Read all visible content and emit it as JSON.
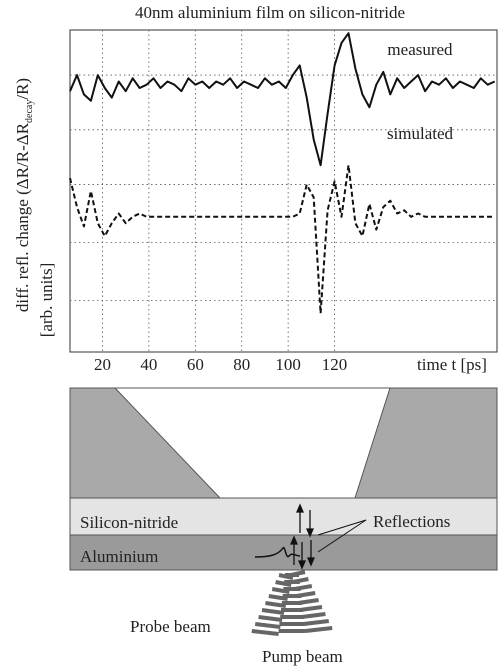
{
  "chart_data": {
    "type": "line",
    "title": "40nm aluminium film on silicon-nitride",
    "y_label": [
      "diff. refl. change (ΔR/R-ΔR",
      "decay",
      "/R)"
    ],
    "y_label_units": "[arb. units]",
    "x_label": "time  t [ps]",
    "x": [
      6,
      9,
      12,
      15,
      18,
      21,
      24,
      27,
      30,
      33,
      36,
      39,
      42,
      45,
      48,
      51,
      54,
      57,
      60,
      63,
      66,
      69,
      72,
      75,
      78,
      81,
      84,
      87,
      90,
      93,
      96,
      99,
      102,
      105,
      108,
      111,
      114,
      117,
      120,
      123,
      126,
      129,
      132,
      135,
      138,
      141,
      144,
      147,
      150,
      153,
      156,
      159,
      162,
      165,
      168,
      171,
      174,
      177,
      180,
      183,
      186,
      189
    ],
    "series": [
      {
        "name": "measured",
        "color": "#111111",
        "dash": false,
        "values": [
          8.1,
          8.6,
          8.0,
          7.8,
          8.6,
          8.2,
          7.9,
          8.4,
          8.1,
          8.5,
          8.2,
          8.3,
          8.5,
          8.2,
          8.4,
          8.3,
          8.1,
          8.5,
          8.3,
          8.4,
          8.2,
          8.4,
          8.3,
          8.5,
          8.2,
          8.4,
          8.3,
          8.2,
          8.5,
          8.3,
          8.4,
          8.2,
          8.6,
          8.9,
          7.9,
          6.6,
          5.8,
          7.4,
          8.9,
          9.6,
          9.9,
          8.8,
          8.0,
          7.6,
          8.3,
          8.7,
          8.0,
          8.5,
          8.2,
          8.4,
          8.6,
          8.1,
          8.4,
          8.3,
          8.5,
          8.2,
          8.4,
          8.3,
          8.2,
          8.5,
          8.3,
          8.4
        ]
      },
      {
        "name": "simulated",
        "color": "#111111",
        "dash": true,
        "values": [
          5.4,
          4.5,
          3.9,
          5.0,
          4.0,
          3.6,
          4.0,
          4.3,
          4.0,
          4.2,
          4.3,
          4.2,
          4.2,
          4.2,
          4.2,
          4.2,
          4.2,
          4.2,
          4.2,
          4.2,
          4.2,
          4.2,
          4.2,
          4.2,
          4.2,
          4.2,
          4.2,
          4.2,
          4.2,
          4.2,
          4.2,
          4.2,
          4.2,
          4.3,
          5.2,
          4.8,
          1.2,
          4.4,
          5.3,
          4.2,
          5.8,
          4.0,
          3.6,
          4.6,
          3.8,
          4.5,
          4.7,
          4.3,
          4.4,
          4.2,
          4.3,
          4.2,
          4.2,
          4.2,
          4.2,
          4.2,
          4.2,
          4.2,
          4.2,
          4.2,
          4.2,
          4.2
        ]
      }
    ],
    "xlim": [
      6,
      190
    ],
    "ylim": [
      0,
      10
    ],
    "xticks": [
      20,
      40,
      60,
      80,
      100,
      120
    ],
    "ygrid": [
      1.6,
      3.4,
      5.2,
      6.9,
      8.6
    ],
    "grid": true
  },
  "diagram": {
    "layers": [
      "Silicon-nitride",
      "Aluminium"
    ],
    "reflections": "Reflections",
    "probe": "Probe beam",
    "pump": "Pump beam"
  }
}
